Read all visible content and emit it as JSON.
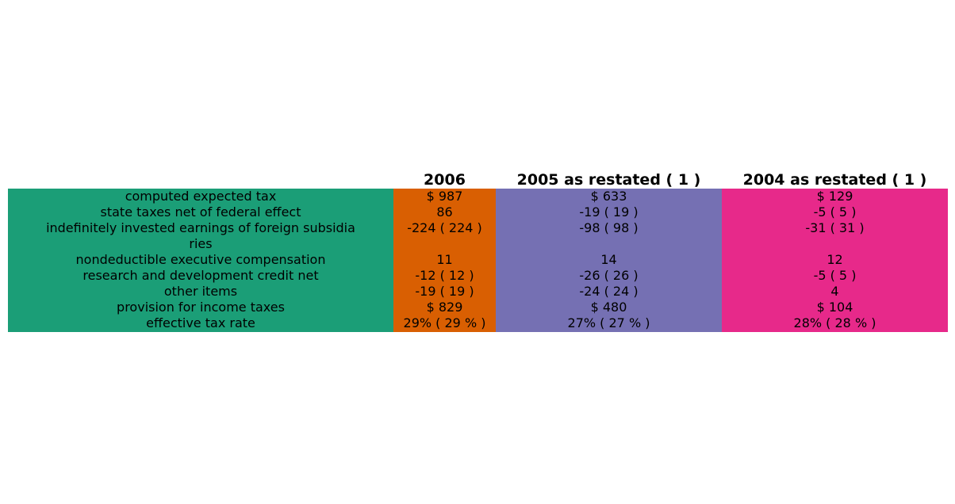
{
  "chart_data": {
    "type": "table",
    "columns": [
      "",
      "2006",
      "2005 as restated ( 1 )",
      "2004 as restated ( 1 )"
    ],
    "column_colors": [
      "#1b9e77",
      "#d95f02",
      "#7570b3",
      "#e7298a"
    ],
    "rows": [
      [
        "computed expected tax",
        "$ 987",
        "$ 633",
        "$ 129"
      ],
      [
        "state taxes net of federal effect",
        "86",
        "-19 ( 19 )",
        "-5 ( 5 )"
      ],
      [
        "indefinitely invested earnings of foreign subsidia\nries",
        "-224 ( 224 )",
        "-98 ( 98 )",
        "-31 ( 31 )"
      ],
      [
        "nondeductible executive compensation",
        "11",
        "14",
        "12"
      ],
      [
        "research and development credit net",
        "-12 ( 12 )",
        "-26 ( 26 )",
        "-5 ( 5 )"
      ],
      [
        "other items",
        "-19 ( 19 )",
        "-24 ( 24 )",
        "4"
      ],
      [
        "provision for income taxes",
        "$ 829",
        "$ 480",
        "$ 104"
      ],
      [
        "effective tax rate",
        "29% ( 29 % )",
        "27% ( 27 % )",
        "28% ( 28 % )"
      ]
    ]
  }
}
